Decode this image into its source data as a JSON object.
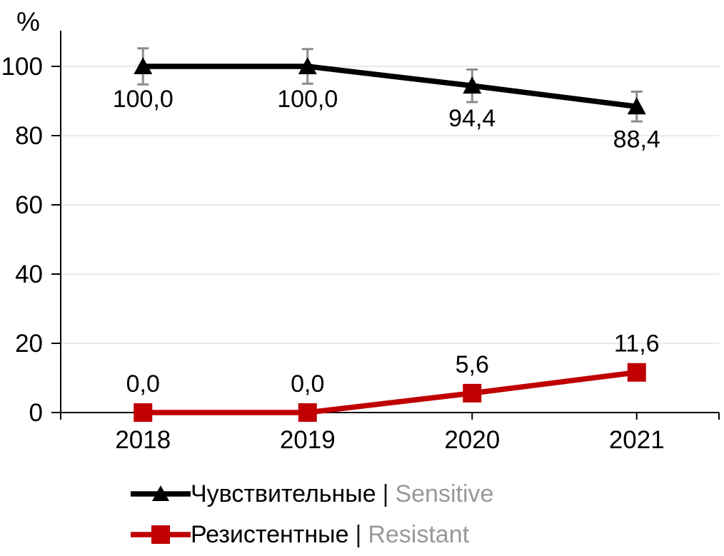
{
  "chart_data": {
    "type": "line",
    "title": "",
    "ylabel": "%",
    "xlabel": "",
    "categories": [
      "2018",
      "2019",
      "2020",
      "2021"
    ],
    "yticks": [
      0,
      20,
      40,
      60,
      80,
      100
    ],
    "ytick_labels": [
      "0",
      "20",
      "40",
      "60",
      "80",
      "100"
    ],
    "ylim": [
      0,
      110
    ],
    "grid": "horizontal",
    "legend_position": "bottom-left",
    "series": [
      {
        "key": "sensitive",
        "name_ru": "Чувствительные",
        "separator": "|",
        "name_en": "Sensitive",
        "color": "#000000",
        "marker": "triangle",
        "values": [
          100.0,
          100.0,
          94.4,
          88.4
        ],
        "labels": [
          "100,0",
          "100,0",
          "94,4",
          "88,4"
        ],
        "label_position": "below",
        "error_bars_est": [
          5.2,
          5.0,
          4.7,
          4.3
        ]
      },
      {
        "key": "resistant",
        "name_ru": "Резистентные",
        "separator": "|",
        "name_en": "Resistant",
        "color": "#C00000",
        "marker": "square",
        "values": [
          0.0,
          0.0,
          5.6,
          11.6
        ],
        "labels": [
          "0,0",
          "0,0",
          "5,6",
          "11,6"
        ],
        "label_position": "above",
        "error_bars_est": null
      }
    ],
    "palette": {
      "axis_color": "#000000",
      "tick_label_color": "#000000",
      "data_label_color": "#000000",
      "gridline_color": "#E7E7E7",
      "error_bar_color": "#8C8C8C",
      "legend_en_color": "#999999",
      "background": "#FFFFFF"
    }
  }
}
